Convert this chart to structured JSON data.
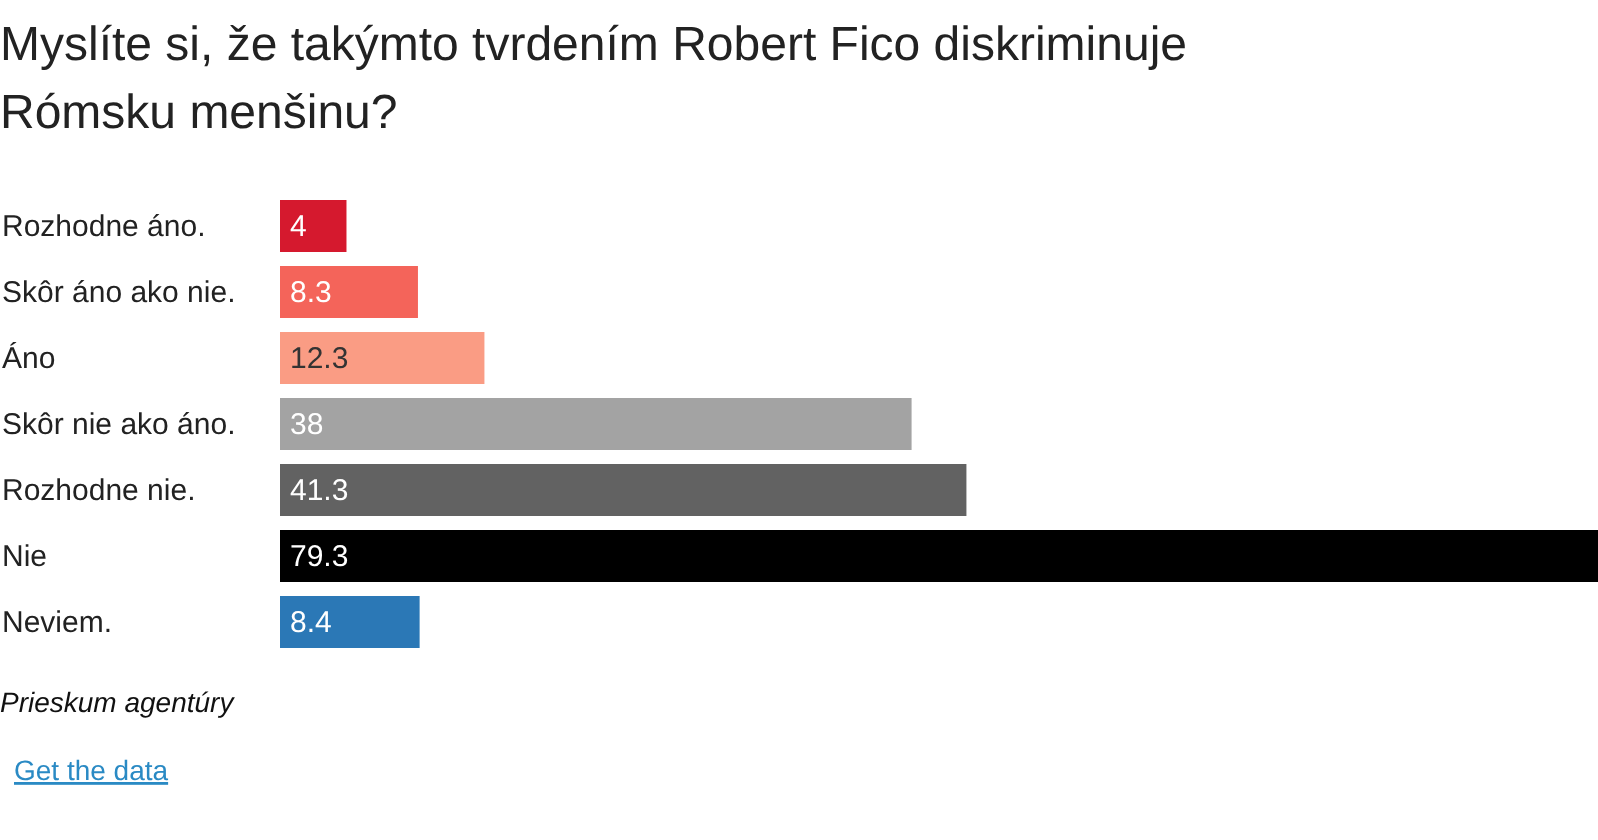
{
  "chart_data": {
    "type": "bar",
    "orientation": "horizontal",
    "title": "Myslíte si, že takýmto tvrdením Robert Fico diskriminuje Rómsku menšinu?",
    "categories": [
      "Rozhodne áno.",
      "Skôr áno ako nie.",
      "Áno",
      "Skôr nie ako áno.",
      "Rozhodne nie.",
      "Nie",
      "Neviem."
    ],
    "values": [
      4,
      8.3,
      12.3,
      38,
      41.3,
      79.3,
      8.4
    ],
    "colors": [
      "#d5192e",
      "#f4645a",
      "#fa9c84",
      "#a3a3a3",
      "#626262",
      "#000000",
      "#2b78b6"
    ],
    "data_labels": true,
    "annotations": [
      "Prieskum agentúry",
      "Get the data"
    ]
  }
}
